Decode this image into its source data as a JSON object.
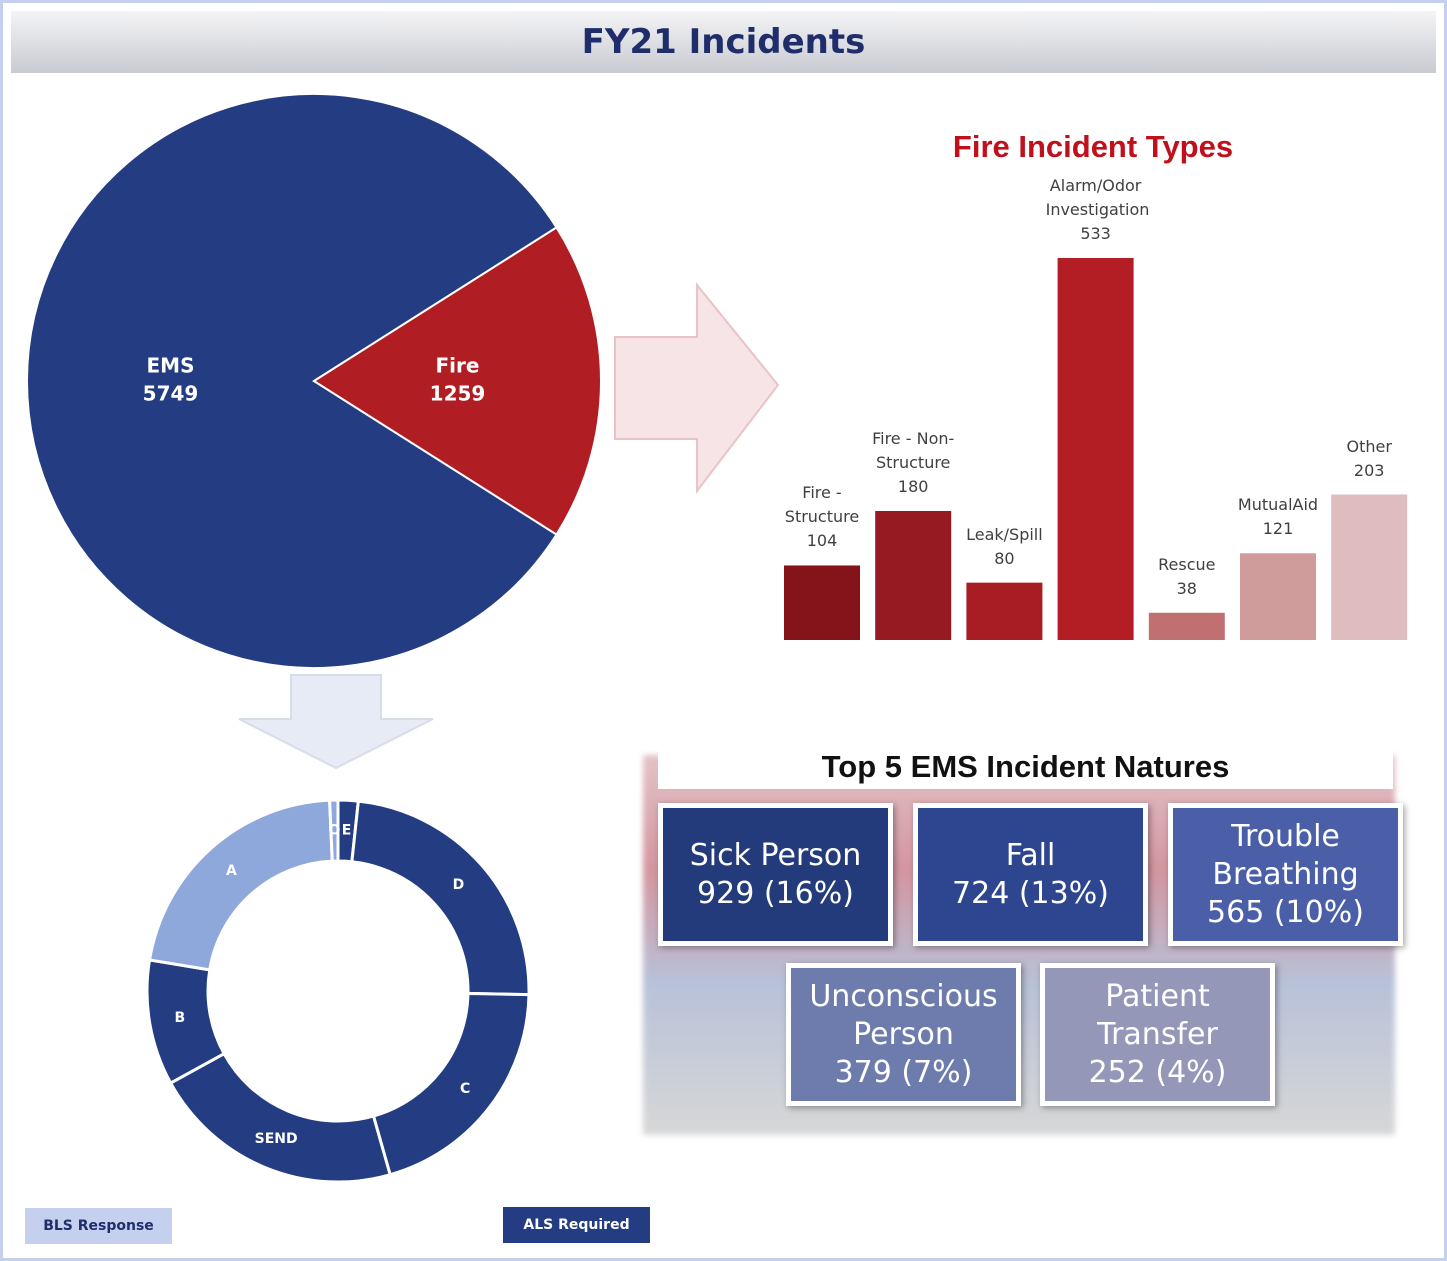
{
  "title": "FY21 Incidents",
  "chart_data": [
    {
      "type": "pie",
      "categories": [
        "EMS",
        "Fire"
      ],
      "values": [
        5749,
        1259
      ],
      "colors": [
        "#233c82",
        "#b01e24"
      ]
    },
    {
      "type": "bar",
      "title": "Fire Incident Types",
      "categories": [
        "Fire - Structure",
        "Fire - Non-Structure",
        "Leak/Spill",
        "Alarm/Odor Investigation",
        "Rescue",
        "MutualAid",
        "Other"
      ],
      "values": [
        104,
        180,
        80,
        533,
        38,
        121,
        203
      ],
      "colors": [
        "#84141a",
        "#951a21",
        "#a81c24",
        "#b31e25",
        "#c07070",
        "#d09b9b",
        "#dfbdbf"
      ]
    },
    {
      "type": "donut",
      "categories": [
        "E",
        "D",
        "C",
        "SEND",
        "B",
        "A",
        "O"
      ],
      "values": [
        1.7,
        23.6,
        20.3,
        21.4,
        10.6,
        21.7,
        0.7
      ],
      "colors": [
        "#233c82",
        "#233c82",
        "#233c82",
        "#233c82",
        "#233c82",
        "#8fa8dc",
        "#8fa8dc"
      ],
      "legend": [
        {
          "name": "BLS Response",
          "color": "#c5d0ee"
        },
        {
          "name": "ALS Required",
          "color": "#233c82"
        }
      ]
    }
  ],
  "ems_natures": {
    "title": "Top 5 EMS Incident Natures",
    "items": [
      {
        "name": "Sick Person",
        "detail": "929 (16%)",
        "color": "#233a7b"
      },
      {
        "name": "Fall",
        "detail": "724 (13%)",
        "color": "#2e4590"
      },
      {
        "name": "Trouble Breathing",
        "detail": "565 (10%)",
        "color": "#4a5fa8"
      },
      {
        "name": "Unconscious Person",
        "detail": "379 (7%)",
        "color": "#6d7bad"
      },
      {
        "name": "Patient Transfer",
        "detail": "252 (4%)",
        "color": "#9497b7"
      }
    ]
  }
}
